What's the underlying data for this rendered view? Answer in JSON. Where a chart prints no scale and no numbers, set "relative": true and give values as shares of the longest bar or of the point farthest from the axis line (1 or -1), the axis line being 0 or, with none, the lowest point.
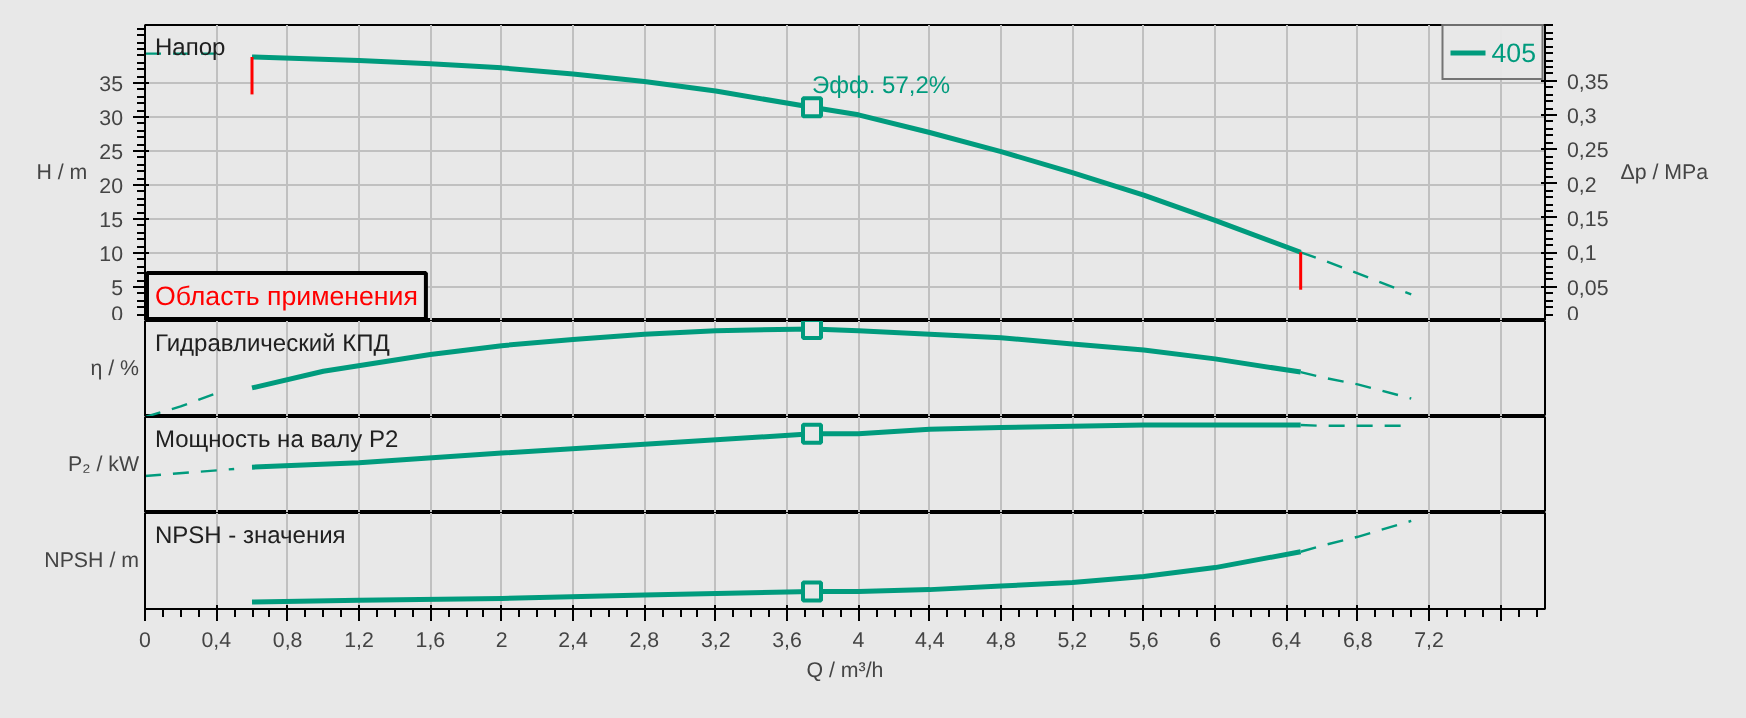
{
  "chart_data": [
    {
      "type": "line",
      "ylabel": "H / m",
      "y2label": "Δp / MPa",
      "xlim": [
        0,
        7.85
      ],
      "ylim": [
        0,
        43.5
      ],
      "y2lim": [
        0,
        0.431
      ],
      "xticks": [
        0,
        0.4,
        0.8,
        1.2,
        1.6,
        2,
        2.4,
        2.8,
        3.2,
        3.6,
        4,
        4.4,
        4.8,
        5.2,
        5.6,
        6,
        6.4,
        6.8,
        7.2,
        7.6
      ],
      "yticks": [
        0,
        5,
        10,
        15,
        20,
        25,
        30,
        35
      ],
      "y2ticks": [
        0,
        {
          "value": 0.05,
          "label": "0,05"
        },
        {
          "value": 0.1,
          "label": "0,1"
        },
        {
          "value": 0.15,
          "label": "0,15"
        },
        {
          "value": 0.2,
          "label": "0,2"
        },
        {
          "value": 0.25,
          "label": "0,25"
        },
        {
          "value": 0.3,
          "label": "0,3"
        },
        {
          "value": 0.35,
          "label": "0,35"
        }
      ],
      "tick_labels": "y",
      "grid": true,
      "legend": "top right",
      "series": [
        {
          "name": "405",
          "color": "#009b7d",
          "x": [
            0.6,
            1.2,
            1.6,
            2.0,
            2.4,
            2.8,
            3.2,
            3.74,
            4.0,
            4.4,
            4.8,
            5.2,
            5.6,
            6.0,
            6.48
          ],
          "values": [
            38.8,
            38.3,
            37.8,
            37.2,
            36.3,
            35.2,
            33.8,
            31.4,
            30.3,
            27.7,
            24.9,
            21.8,
            18.5,
            14.8,
            10.1
          ]
        },
        {
          "color": "#009b7d",
          "line_style": "dashed",
          "x": [
            0,
            0.4,
            0.5,
            6.48,
            6.6,
            6.8,
            7.1
          ],
          "values": [
            39.3,
            39.3,
            null,
            10.1,
            9.0,
            7.0,
            3.9
          ]
        },
        {
          "type": "scatter",
          "marker": "square",
          "color": "#009b7d",
          "x": [
            3.74
          ],
          "values": [
            31.4
          ]
        }
      ],
      "ref_lines": [
        {
          "axis": "x",
          "value": 0.6,
          "label": null,
          "color": "#ff0000"
        },
        {
          "axis": "x",
          "value": 6.48,
          "label": null,
          "color": "#ff0000"
        }
      ],
      "annotations": [
        "Напор",
        {
          "text": "Эфф.  57,2%",
          "x": 3.74,
          "y": 31.4
        },
        "Область применения"
      ]
    },
    {
      "type": "line",
      "ylabel": "η / %",
      "relative": true,
      "xlim": [
        0,
        7.85
      ],
      "xticks": [
        0,
        0.4,
        0.8,
        1.2,
        1.6,
        2,
        2.4,
        2.8,
        3.2,
        3.6,
        4,
        4.4,
        4.8,
        5.2,
        5.6,
        6,
        6.4,
        6.8,
        7.2,
        7.6
      ],
      "tick_labels": false,
      "grid": "x",
      "series": [
        {
          "color": "#009b7d",
          "x": [
            0.6,
            1.0,
            1.6,
            2.0,
            2.4,
            2.8,
            3.2,
            3.74,
            4.0,
            4.4,
            4.8,
            5.2,
            5.6,
            6.0,
            6.48
          ],
          "values": [
            0.33,
            0.52,
            0.71,
            0.81,
            0.88,
            0.94,
            0.98,
            1.0,
            0.98,
            0.94,
            0.9,
            0.83,
            0.76,
            0.66,
            0.51
          ]
        },
        {
          "color": "#009b7d",
          "line_style": "dashed",
          "x": [
            0,
            0.2,
            0.4,
            0.5,
            6.48,
            6.6,
            6.8,
            7.1
          ],
          "values": [
            0,
            0.12,
            0.27,
            null,
            0.51,
            0.45,
            0.37,
            0.21
          ]
        },
        {
          "type": "scatter",
          "marker": "square",
          "color": "#009b7d",
          "x": [
            3.74
          ],
          "values": [
            1.0
          ]
        }
      ],
      "annotations": [
        "Гидравлический КПД"
      ]
    },
    {
      "type": "line",
      "ylabel": "P₂ / kW",
      "relative": true,
      "xlim": [
        0,
        7.85
      ],
      "xticks": [
        0,
        0.4,
        0.8,
        1.2,
        1.6,
        2,
        2.4,
        2.8,
        3.2,
        3.6,
        4,
        4.4,
        4.8,
        5.2,
        5.6,
        6,
        6.4,
        6.8,
        7.2,
        7.6
      ],
      "tick_labels": false,
      "grid": "x",
      "series": [
        {
          "color": "#009b7d",
          "x": [
            0.6,
            1.2,
            2.0,
            2.8,
            3.74,
            4.0,
            4.4,
            4.8,
            5.6,
            6.0,
            6.48
          ],
          "values": [
            0.52,
            0.57,
            0.68,
            0.78,
            0.9,
            0.9,
            0.95,
            0.97,
            1,
            1,
            1
          ]
        },
        {
          "color": "#009b7d",
          "line_style": "dashed",
          "x": [
            0,
            0.5,
            0.55,
            6.48,
            6.6,
            7.1
          ],
          "values": [
            0.42,
            0.5,
            null,
            1,
            0.99,
            0.99
          ]
        },
        {
          "type": "scatter",
          "marker": "square",
          "color": "#009b7d",
          "x": [
            3.74
          ],
          "values": [
            0.9
          ]
        }
      ],
      "annotations": [
        "Мощность на валу P2"
      ]
    },
    {
      "type": "line",
      "ylabel": "NPSH / m",
      "xlabel": "Q / m³/h",
      "relative": true,
      "xlim": [
        0,
        7.85
      ],
      "xticks": [
        0,
        {
          "value": 0.4,
          "label": "0,4"
        },
        {
          "value": 0.8,
          "label": "0,8"
        },
        {
          "value": 1.2,
          "label": "1,2"
        },
        {
          "value": 1.6,
          "label": "1,6"
        },
        2,
        {
          "value": 2.4,
          "label": "2,4"
        },
        {
          "value": 2.8,
          "label": "2,8"
        },
        {
          "value": 3.2,
          "label": "3,2"
        },
        {
          "value": 3.6,
          "label": "3,6"
        },
        4,
        {
          "value": 4.4,
          "label": "4,4"
        },
        {
          "value": 4.8,
          "label": "4,8"
        },
        {
          "value": 5.2,
          "label": "5,2"
        },
        {
          "value": 5.6,
          "label": "5,6"
        },
        6,
        {
          "value": 6.4,
          "label": "6,4"
        },
        {
          "value": 6.8,
          "label": "6,8"
        },
        {
          "value": 7.2,
          "label": "7,2"
        },
        {
          "value": 7.6,
          "label": null
        }
      ],
      "tick_labels": "x",
      "grid": "x",
      "series": [
        {
          "color": "#009b7d",
          "x": [
            0.6,
            1.2,
            2.0,
            2.8,
            3.74,
            4.0,
            4.4,
            4.8,
            5.2,
            5.6,
            6.0,
            6.48
          ],
          "values": [
            0.08,
            0.1,
            0.12,
            0.16,
            0.2,
            0.2,
            0.22,
            0.26,
            0.3,
            0.37,
            0.47,
            0.65
          ]
        },
        {
          "color": "#009b7d",
          "line_style": "dashed",
          "x": [
            6.48,
            6.6,
            6.8,
            7.1
          ],
          "values": [
            0.65,
            0.72,
            0.82,
            1.0
          ]
        },
        {
          "type": "scatter",
          "marker": "square",
          "color": "#009b7d",
          "x": [
            3.74
          ],
          "values": [
            0.2
          ]
        }
      ],
      "annotations": [
        "NPSH - значения"
      ]
    }
  ]
}
